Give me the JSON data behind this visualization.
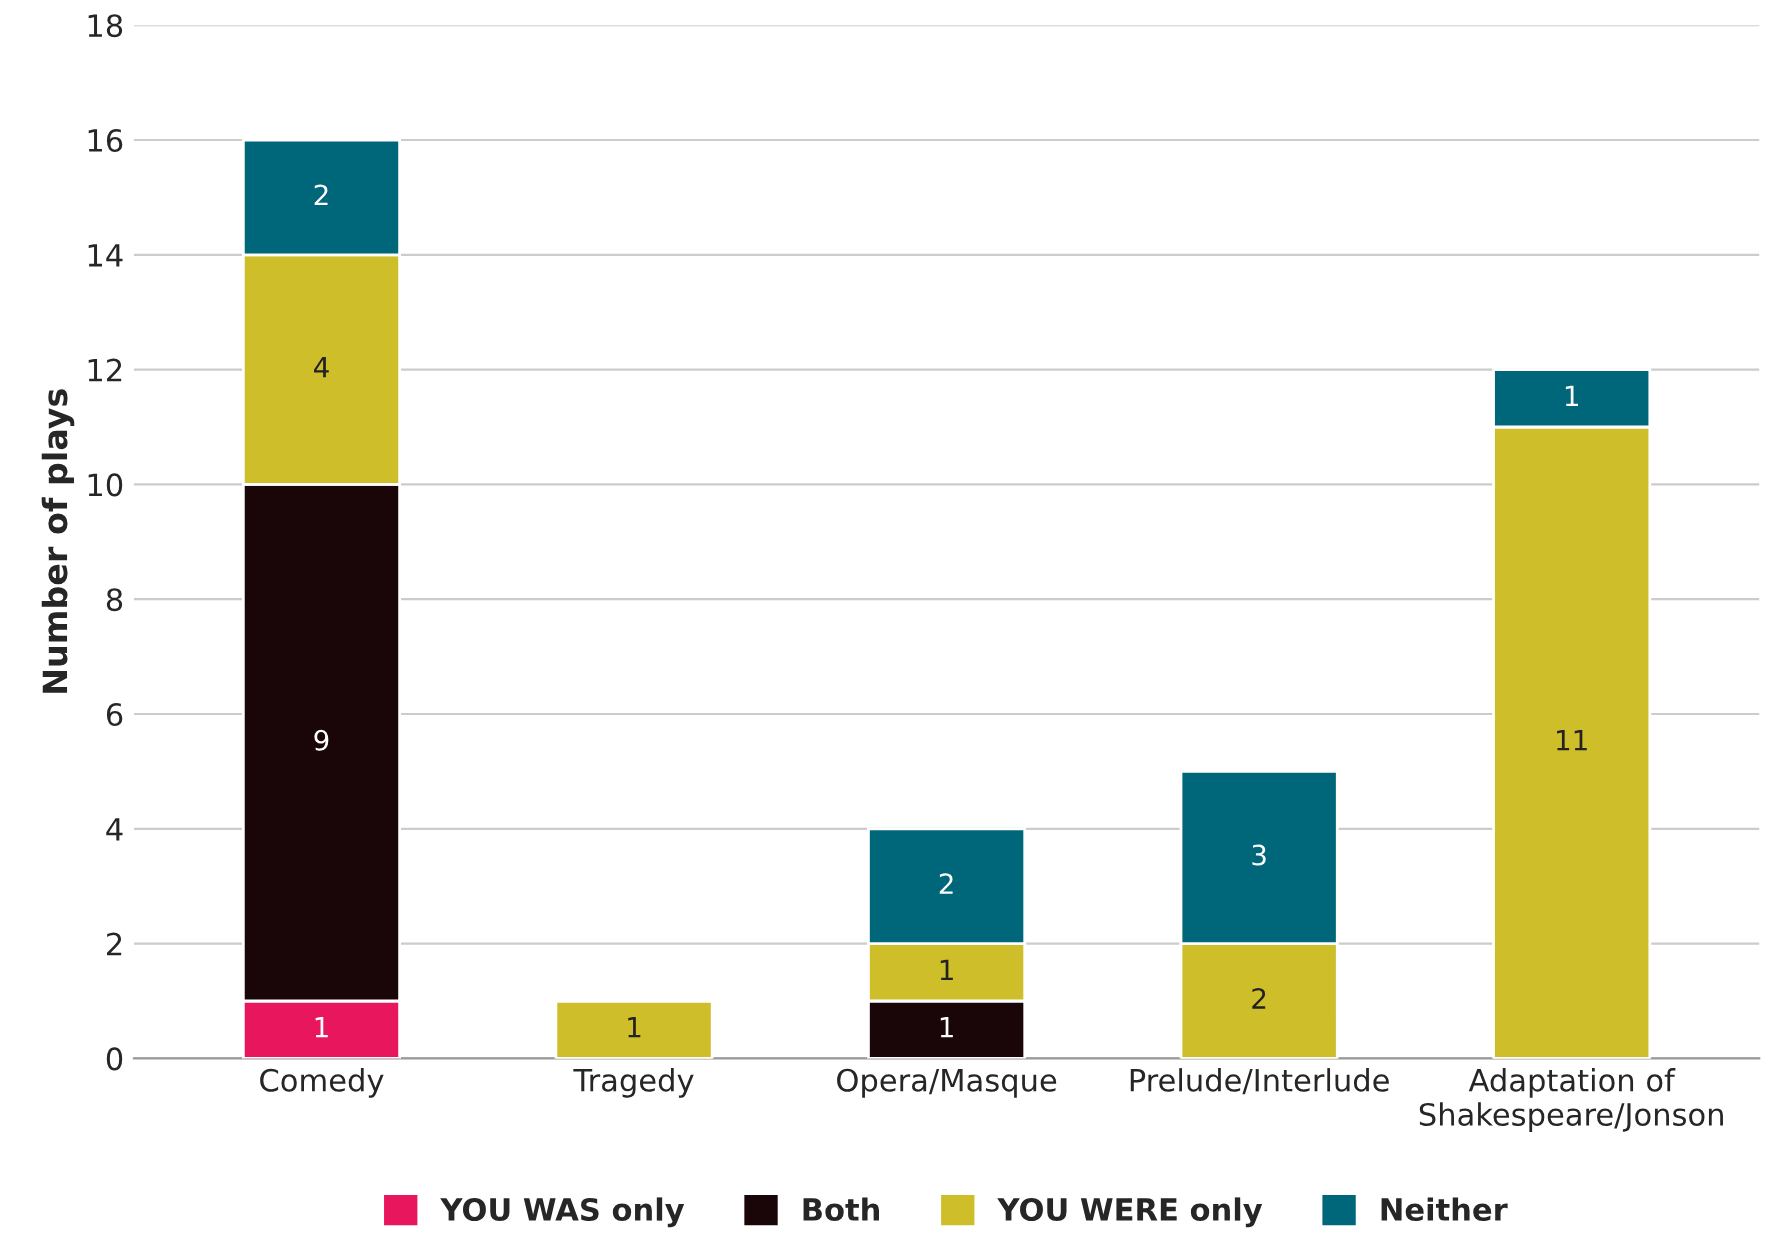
{
  "chart_data": {
    "type": "bar",
    "stacked": true,
    "ylabel": "Number of plays",
    "categories": [
      "Comedy",
      "Tragedy",
      "Opera/Masque",
      "Prelude/Interlude",
      "Adaptation of\nShakespeare/Jonson"
    ],
    "series": [
      {
        "name": "YOU WAS only",
        "color": "#e8175d",
        "values": [
          1,
          null,
          null,
          null,
          null
        ]
      },
      {
        "name": "Both",
        "color": "#1a0508",
        "values": [
          9,
          null,
          1,
          null,
          null
        ]
      },
      {
        "name": "YOU WERE only",
        "color": "#cdbe2a",
        "values": [
          4,
          1,
          1,
          2,
          11
        ]
      },
      {
        "name": "Neither",
        "color": "#00667a",
        "values": [
          2,
          null,
          2,
          3,
          1
        ]
      }
    ],
    "ylim": [
      0,
      18
    ],
    "yticks": [
      0,
      2,
      4,
      6,
      8,
      10,
      12,
      14,
      16,
      18
    ],
    "grid": "y",
    "legend": "bottom",
    "data_labels": true
  }
}
